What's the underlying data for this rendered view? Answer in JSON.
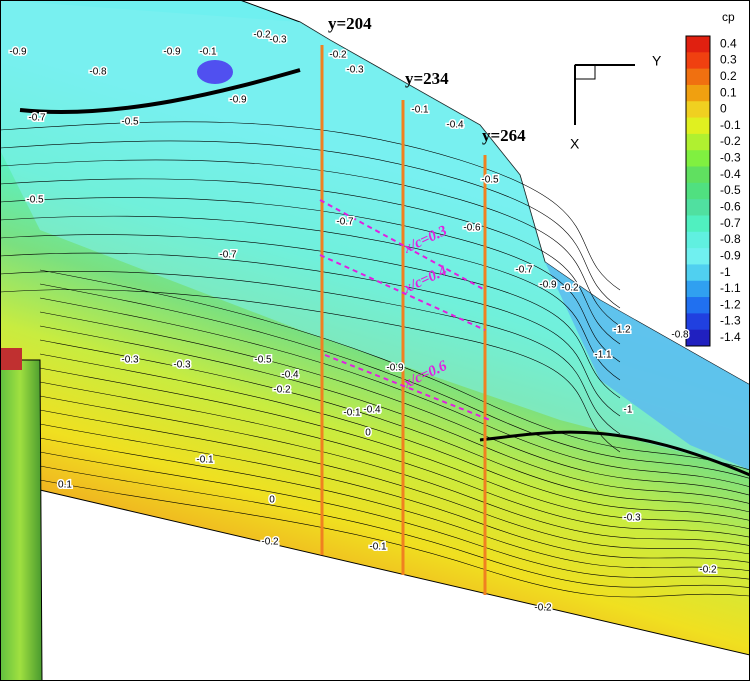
{
  "colorbar": {
    "title": "cp",
    "ticks": [
      0.4,
      0.3,
      0.2,
      0.1,
      0,
      -0.1,
      -0.2,
      -0.3,
      -0.4,
      -0.5,
      -0.6,
      -0.7,
      -0.8,
      -0.9,
      -1,
      -1.1,
      -1.2,
      -1.3,
      -1.4
    ]
  },
  "axes": {
    "y": "Y",
    "x": "X"
  },
  "stations": [
    "y=204",
    "y=234",
    "y=264"
  ],
  "sections": [
    "x/c=0.3",
    "x/c=0.4",
    "x/c=0.6"
  ],
  "contour_labels": [
    "-0.9",
    "-0.8",
    "-0.9",
    "-0.1",
    "-0.7",
    "-0.5",
    "-0.9",
    "-0.2",
    "-0.3",
    "-0.2",
    "-0.3",
    "-0.1",
    "-0.5",
    "-0.6",
    "-0.4",
    "-0.7",
    "-0.5",
    "-0.7",
    "-0.7",
    "-0.9",
    "-0.5",
    "-0.4",
    "-0.3",
    "-0.3",
    "-0.2",
    "-0.9",
    "-0.4",
    "-0.1",
    "0",
    "-0.1",
    "0.1",
    "0",
    "-0.2",
    "-0.1",
    "-0.3",
    "-0.2",
    "-1.1",
    "-1",
    "-1.2",
    "-0.2",
    "-0.8",
    "-0.2"
  ]
}
